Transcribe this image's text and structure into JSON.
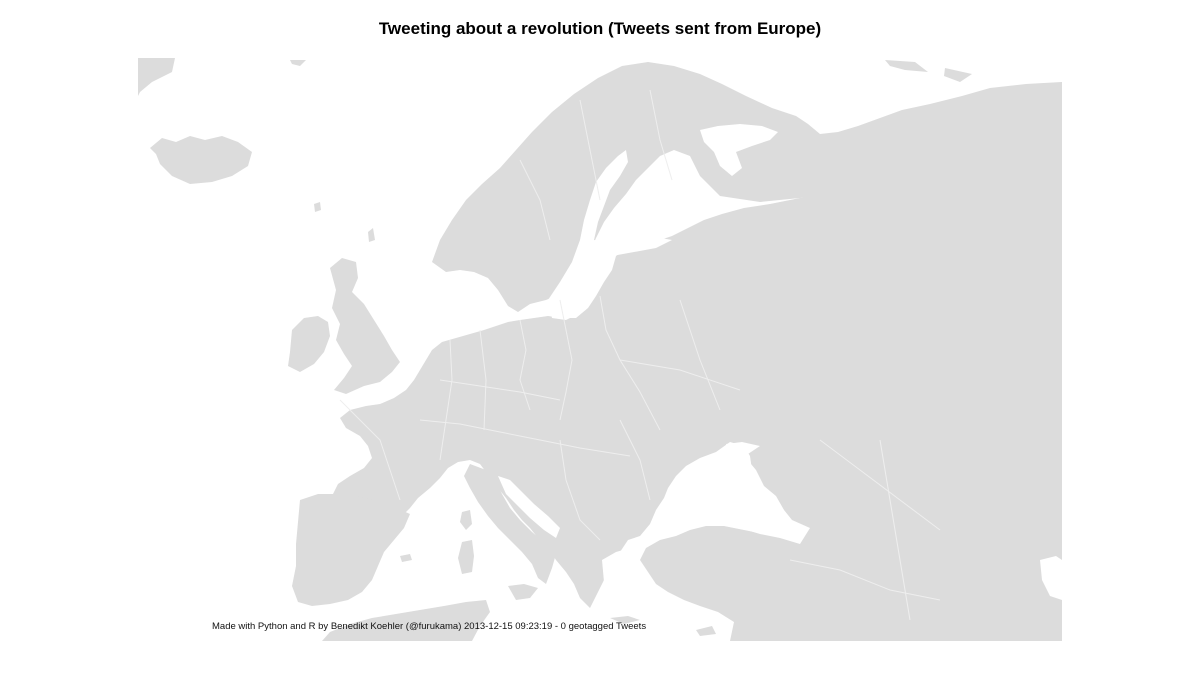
{
  "title": "Tweeting about a revolution (Tweets sent from Europe)",
  "caption": "Made with Python and R by Benedikt Koehler (@furukama) 2013-12-15 09:23:19 - 0 geotagged Tweets",
  "map": {
    "region": "Europe",
    "land_color": "#dcdcdc",
    "water_color": "#ffffff",
    "border_color": "#eeeeee",
    "tweet_points": []
  }
}
